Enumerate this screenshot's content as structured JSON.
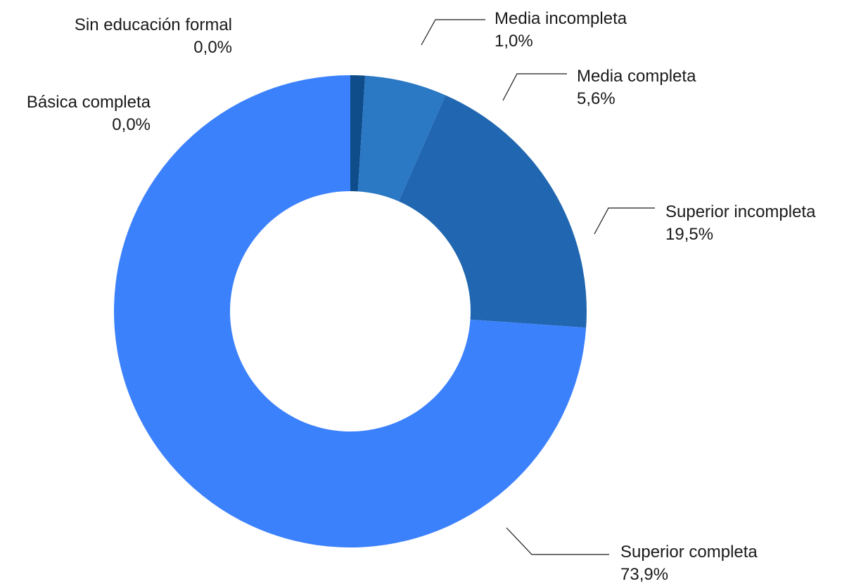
{
  "chart_data": {
    "type": "pie",
    "variant": "donut",
    "categories": [
      "Sin educación formal",
      "Básica completa",
      "Media incompleta",
      "Media completa",
      "Superior incompleta",
      "Superior completa"
    ],
    "values": [
      0.0,
      0.0,
      1.0,
      5.6,
      19.5,
      73.9
    ],
    "value_labels": [
      "0,0%",
      "0,0%",
      "1,0%",
      "5,6%",
      "19,5%",
      "73,9%"
    ],
    "unit": "%",
    "colors": [
      "#0b2a5c",
      "#0e3f78",
      "#0f4c8a",
      "#2b78c5",
      "#2066b0",
      "#3c81fc"
    ],
    "start": "top, clockwise",
    "legend": "none"
  }
}
